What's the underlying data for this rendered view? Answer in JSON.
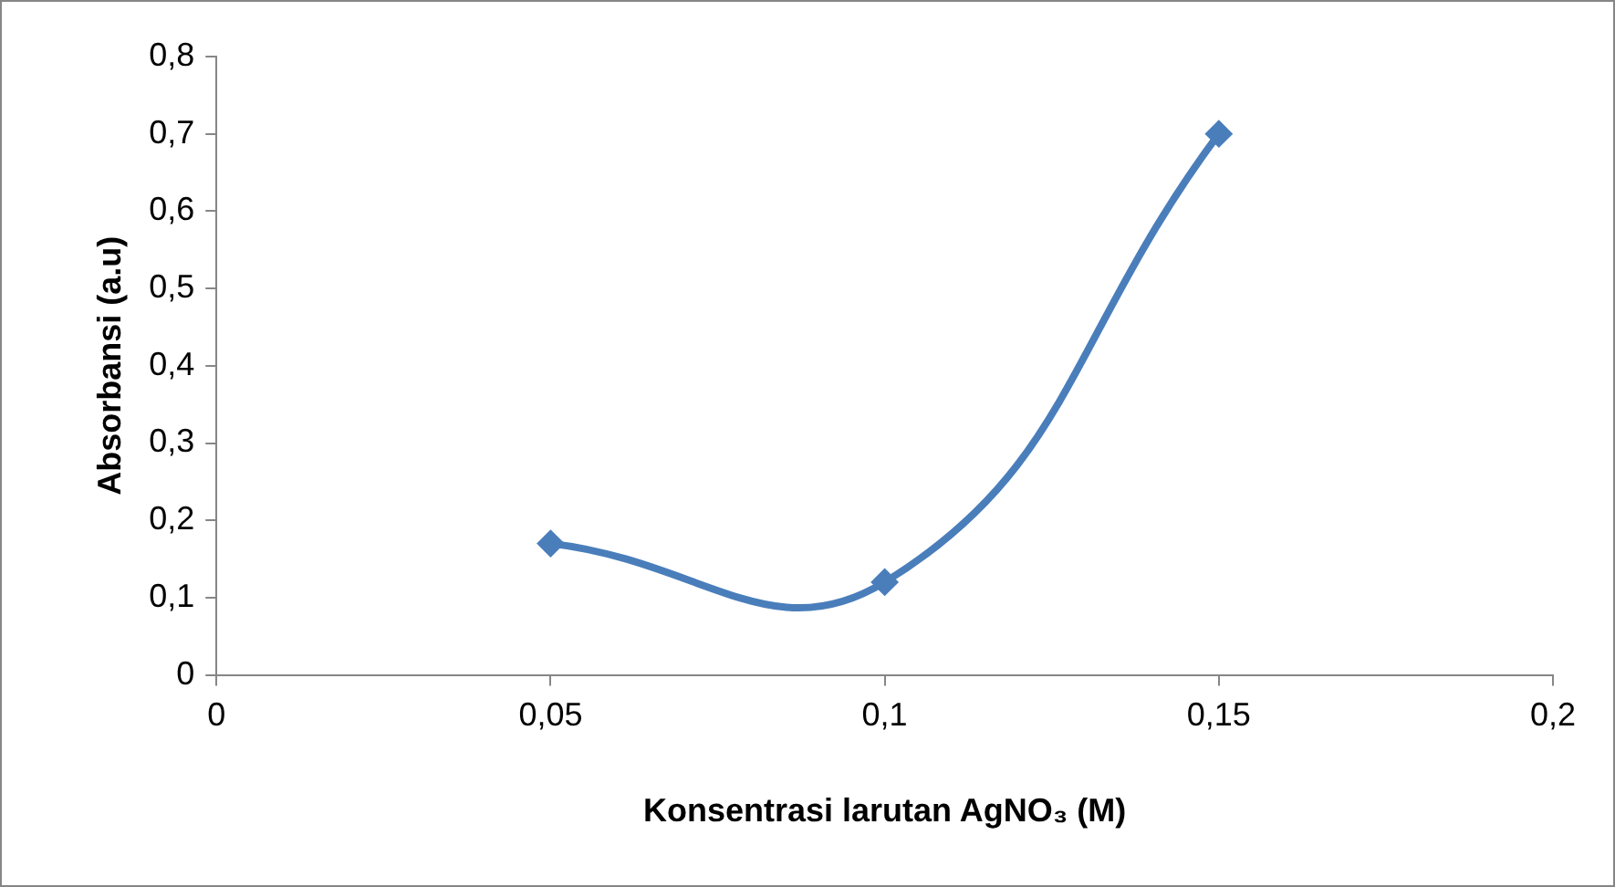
{
  "chart_data": {
    "type": "line",
    "xlabel": "Konsentrasi larutan AgNO₃ (M)",
    "ylabel": "Absorbansi (a.u)",
    "x": [
      0.05,
      0.1,
      0.15
    ],
    "series": [
      {
        "color": "#4a7ebb",
        "values": [
          0.17,
          0.12,
          0.7
        ]
      }
    ],
    "xlim": [
      0,
      0.2
    ],
    "xticks": [
      0,
      {
        "value": 0.05,
        "label": "0,05"
      },
      {
        "value": 0.1,
        "label": "0,1"
      },
      {
        "value": 0.15,
        "label": "0,15"
      },
      {
        "value": 0.2,
        "label": "0,2"
      }
    ],
    "ylim": [
      0,
      0.8
    ],
    "yticks": [
      0,
      {
        "value": 0.1,
        "label": "0,1"
      },
      {
        "value": 0.2,
        "label": "0,2"
      },
      {
        "value": 0.3,
        "label": "0,3"
      },
      {
        "value": 0.4,
        "label": "0,4"
      },
      {
        "value": 0.5,
        "label": "0,5"
      },
      {
        "value": 0.6,
        "label": "0,6"
      },
      {
        "value": 0.7,
        "label": "0,7"
      },
      {
        "value": 0.8,
        "label": "0,8"
      }
    ],
    "grid": false,
    "legend": false,
    "marker": "diamond",
    "line_style": "solid"
  }
}
